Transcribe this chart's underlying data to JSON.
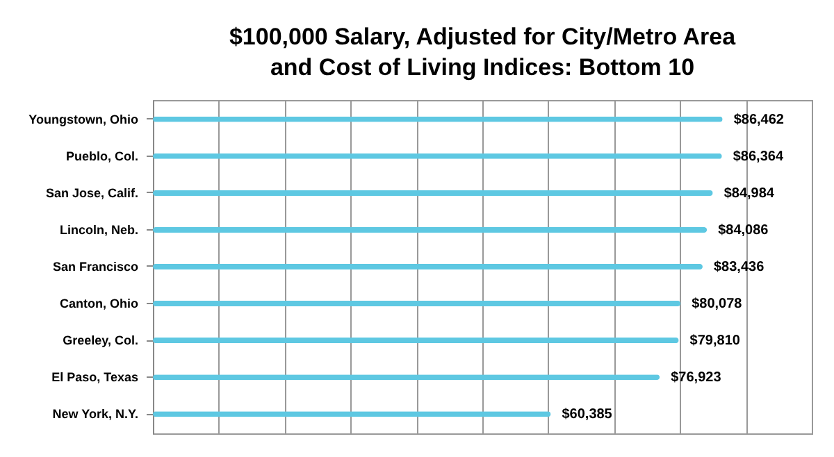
{
  "chart_data": {
    "type": "bar",
    "orientation": "horizontal",
    "title": "$100,000 Salary, Adjusted for City/Metro Area and Cost of Living Indices: Bottom 10",
    "categories": [
      "Youngstown, Ohio",
      "Pueblo, Col.",
      "San Jose, Calif.",
      "Lincoln, Neb.",
      "San Francisco",
      "Canton,  Ohio",
      "Greeley, Col.",
      "El Paso, Texas",
      "New York, N.Y."
    ],
    "values": [
      86462,
      86364,
      84984,
      84086,
      83436,
      80078,
      79810,
      76923,
      60385
    ],
    "value_labels": [
      "$86,462",
      "$86,364",
      "$84,984",
      "$84,086",
      "$83,436",
      "$80,078",
      "$79,810",
      "$76,923",
      "$60,385"
    ],
    "color": "#5ec8e2",
    "xlim": [
      0,
      100000
    ],
    "xticks": [
      {
        "value": 0,
        "label": null
      },
      {
        "value": 10000,
        "label": null
      },
      {
        "value": 20000,
        "label": null
      },
      {
        "value": 30000,
        "label": null
      },
      {
        "value": 40000,
        "label": null
      },
      {
        "value": 50000,
        "label": null
      },
      {
        "value": 60000,
        "label": null
      },
      {
        "value": 70000,
        "label": null
      },
      {
        "value": 80000,
        "label": null
      },
      {
        "value": 90000,
        "label": null
      },
      {
        "value": 100000,
        "label": null
      }
    ],
    "tick_labels": "y",
    "grid": "x"
  }
}
